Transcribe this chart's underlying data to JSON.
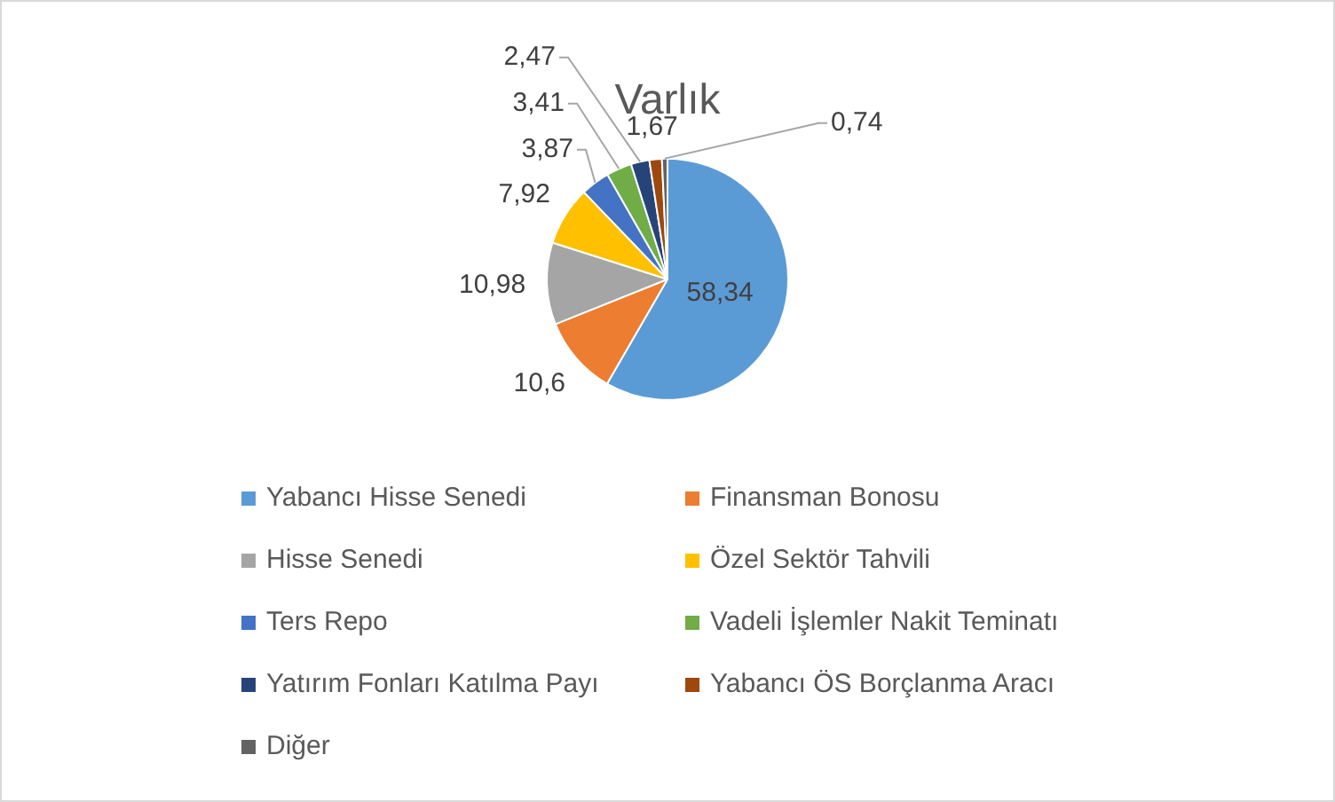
{
  "chart_data": {
    "type": "pie",
    "title": "Varlık",
    "categories": [
      "Yabancı Hisse Senedi",
      "Finansman Bonosu",
      "Hisse Senedi",
      "Özel Sektör Tahvili",
      "Ters Repo",
      "Vadeli İşlemler Nakit Teminatı",
      "Yatırım Fonları Katılma Payı",
      "Yabancı ÖS Borçlanma Aracı",
      "Diğer"
    ],
    "values": [
      58.34,
      10.6,
      10.98,
      7.92,
      3.87,
      3.41,
      2.47,
      1.67,
      0.74
    ],
    "value_labels": [
      "58,34",
      "10,6",
      "10,98",
      "7,92",
      "3,87",
      "3,41",
      "2,47",
      "1,67",
      "0,74"
    ],
    "colors": [
      "#5b9bd5",
      "#ed7d31",
      "#a5a5a5",
      "#ffc000",
      "#4472c4",
      "#70ad47",
      "#264478",
      "#9e480e",
      "#636363"
    ],
    "legend": "bottom"
  }
}
